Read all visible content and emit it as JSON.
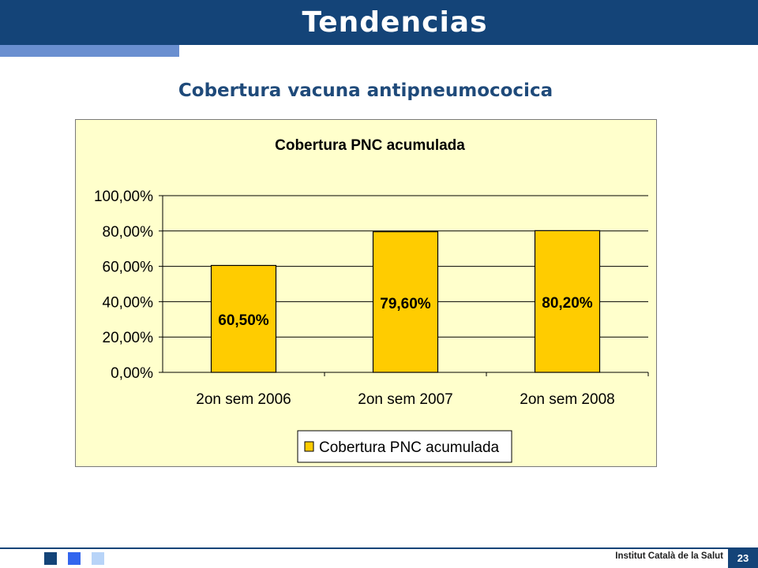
{
  "slide": {
    "title": "Tendencias",
    "subtitle": "Cobertura vacuna antipneumococica"
  },
  "footer": {
    "institution": "Institut Català de la Salut",
    "page_number": "23"
  },
  "colors": {
    "header": "#144478",
    "accent": "#6a8fd0",
    "chart_background": "#ffffcc",
    "bar": "#ffcc00",
    "square_dark": "#144478",
    "square_mid": "#3366ee",
    "square_light": "#b8d4f8"
  },
  "chart_data": {
    "type": "bar",
    "title": "Cobertura PNC acumulada",
    "categories": [
      "2on sem 2006",
      "2on sem 2007",
      "2on sem 2008"
    ],
    "series": [
      {
        "name": "Cobertura PNC acumulada",
        "values": [
          60.5,
          79.6,
          80.2
        ],
        "labels": [
          "60,50%",
          "79,60%",
          "80,20%"
        ]
      }
    ],
    "ylim": [
      0,
      100
    ],
    "yticks": [
      0,
      20,
      40,
      60,
      80,
      100
    ],
    "ytick_labels": [
      "0,00%",
      "20,00%",
      "40,00%",
      "60,00%",
      "80,00%",
      "100,00%"
    ],
    "grid": true,
    "legend": "bottom"
  }
}
